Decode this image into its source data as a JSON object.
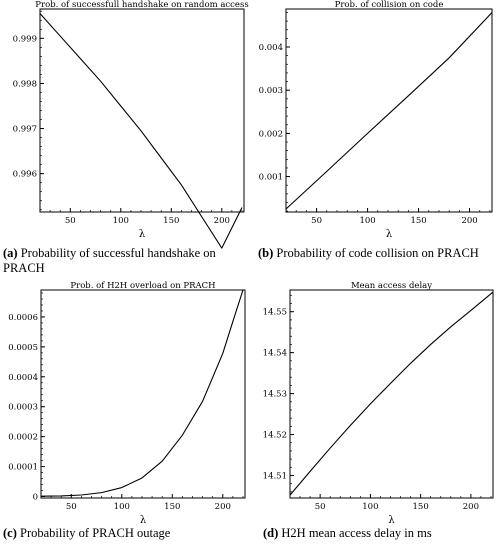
{
  "chart_data": [
    {
      "type": "line",
      "title": "Prob. of successfull handshake on random access",
      "xlabel": "λ",
      "ylabel": "",
      "xlim": [
        20,
        222
      ],
      "ylim": [
        0.99515,
        0.99965
      ],
      "xticks": [
        50,
        100,
        150,
        200
      ],
      "yticks": [
        0.996,
        0.997,
        0.998,
        0.999
      ],
      "grid": false,
      "series": [
        {
          "x": [
            20,
            40,
            60,
            80,
            100,
            120,
            140,
            160,
            180,
            200,
            220
          ],
          "values": [
            0.99955,
            0.99905,
            0.99855,
            0.99805,
            0.9975,
            0.99695,
            0.99635,
            0.99575,
            0.99505,
            0.99435,
            0.99525
          ]
        }
      ],
      "caption_label": "(a)",
      "caption_text": "Probability of successful handshake on PRACH"
    },
    {
      "type": "line",
      "title": "Prob. of collision on code",
      "xlabel": "λ",
      "ylabel": "",
      "xlim": [
        20,
        222
      ],
      "ylim": [
        0.00018,
        0.00488
      ],
      "xticks": [
        50,
        100,
        150,
        200
      ],
      "yticks": [
        0.001,
        0.002,
        0.003,
        0.004
      ],
      "grid": false,
      "series": [
        {
          "x": [
            20,
            60,
            100,
            140,
            180,
            222
          ],
          "values": [
            0.00025,
            0.00112,
            0.002,
            0.00287,
            0.00375,
            0.0048
          ]
        }
      ],
      "caption_label": "(b)",
      "caption_text": "Probability of code collision on PRACH"
    },
    {
      "type": "line",
      "title": "Prob. of H2H overload on PRACH",
      "xlabel": "λ",
      "ylabel": "",
      "xlim": [
        20,
        222
      ],
      "ylim": [
        -5e-06,
        0.00069
      ],
      "xticks": [
        50,
        100,
        150,
        200
      ],
      "yticks": [
        0,
        0.0001,
        0.0002,
        0.0003,
        0.0004,
        0.0005,
        0.0006
      ],
      "ytick_labels": [
        "0",
        "0.0001",
        "0.0002",
        "0.0003",
        "0.0004",
        "0.0005",
        "0.0006"
      ],
      "grid": false,
      "series": [
        {
          "x": [
            20,
            40,
            60,
            80,
            100,
            120,
            140,
            160,
            180,
            200,
            210,
            220
          ],
          "values": [
            1e-06,
            2e-06,
            5e-06,
            1.3e-05,
            3e-05,
            6.2e-05,
            0.000118,
            0.000205,
            0.000318,
            0.000478,
            0.000585,
            0.00069
          ]
        }
      ],
      "caption_label": "(c)",
      "caption_text": "Probability of PRACH outage"
    },
    {
      "type": "line",
      "title": "Mean access delay",
      "xlabel": "λ",
      "ylabel": "",
      "xlim": [
        20,
        222
      ],
      "ylim": [
        14.5045,
        14.5553
      ],
      "xticks": [
        50,
        100,
        150,
        200
      ],
      "yticks": [
        14.51,
        14.52,
        14.53,
        14.54,
        14.55
      ],
      "grid": false,
      "series": [
        {
          "x": [
            20,
            40,
            60,
            80,
            100,
            120,
            140,
            160,
            180,
            200,
            222
          ],
          "values": [
            14.5052,
            14.511,
            14.5167,
            14.5222,
            14.5275,
            14.5325,
            14.5374,
            14.542,
            14.5463,
            14.5503,
            14.5548
          ]
        }
      ],
      "caption_label": "(d)",
      "caption_text": "H2H mean access delay in ms"
    }
  ]
}
